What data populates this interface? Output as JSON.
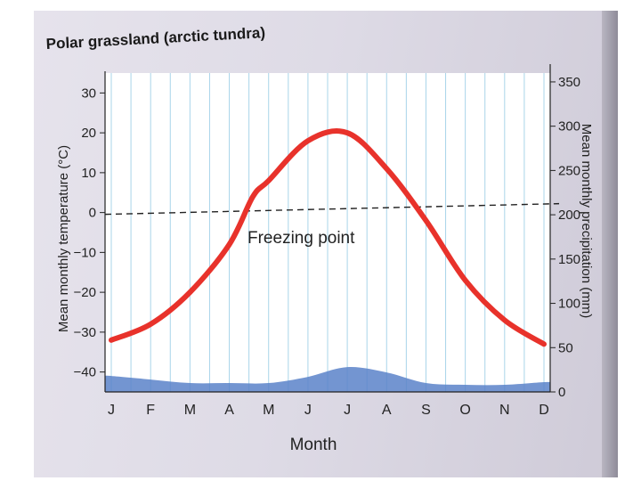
{
  "chart_data": {
    "type": "line",
    "title": "Polar grassland (arctic tundra)",
    "xlabel": "Month",
    "ylabel_left": "Mean monthly temperature (°C)",
    "ylabel_right": "Mean monthly precipitation (mm)",
    "categories": [
      "J",
      "F",
      "M",
      "A",
      "M",
      "J",
      "J",
      "A",
      "S",
      "O",
      "N",
      "D"
    ],
    "left_axis": {
      "ylim": [
        -45,
        35
      ],
      "ticks": [
        "30",
        "20",
        "10",
        "0",
        "−10",
        "−20",
        "−30",
        "−40"
      ],
      "tick_values": [
        30,
        20,
        10,
        0,
        -10,
        -20,
        -30,
        -40
      ]
    },
    "right_axis": {
      "ylim": [
        0,
        360
      ],
      "ticks": [
        "350",
        "300",
        "250",
        "200",
        "150",
        "100",
        "50",
        "0"
      ],
      "tick_values": [
        350,
        300,
        250,
        200,
        150,
        100,
        50,
        0
      ]
    },
    "series": [
      {
        "kind": "temperature-line",
        "axis": "left",
        "color": "#e8322b",
        "x": [
          0,
          1,
          2,
          3,
          3.6,
          4,
          5,
          6,
          7,
          8,
          9,
          10,
          11
        ],
        "values": [
          -32,
          -28,
          -20,
          -8,
          4,
          8,
          18,
          20,
          11,
          -2,
          -17,
          -27,
          -33
        ]
      },
      {
        "kind": "precipitation-area",
        "axis": "right",
        "color": "#5b83c9",
        "x": [
          0,
          1,
          2,
          3,
          4,
          5,
          6,
          7,
          8,
          9,
          10,
          11
        ],
        "values": [
          18,
          14,
          10,
          10,
          10,
          17,
          28,
          22,
          10,
          8,
          8,
          11
        ]
      }
    ],
    "annotations": [
      {
        "label": "Freezing point",
        "temperature": 0
      }
    ],
    "grid": "vertical",
    "colors": {
      "grid": "#a9d4ea",
      "axis": "#222222",
      "page": "#e3e0ea"
    }
  }
}
